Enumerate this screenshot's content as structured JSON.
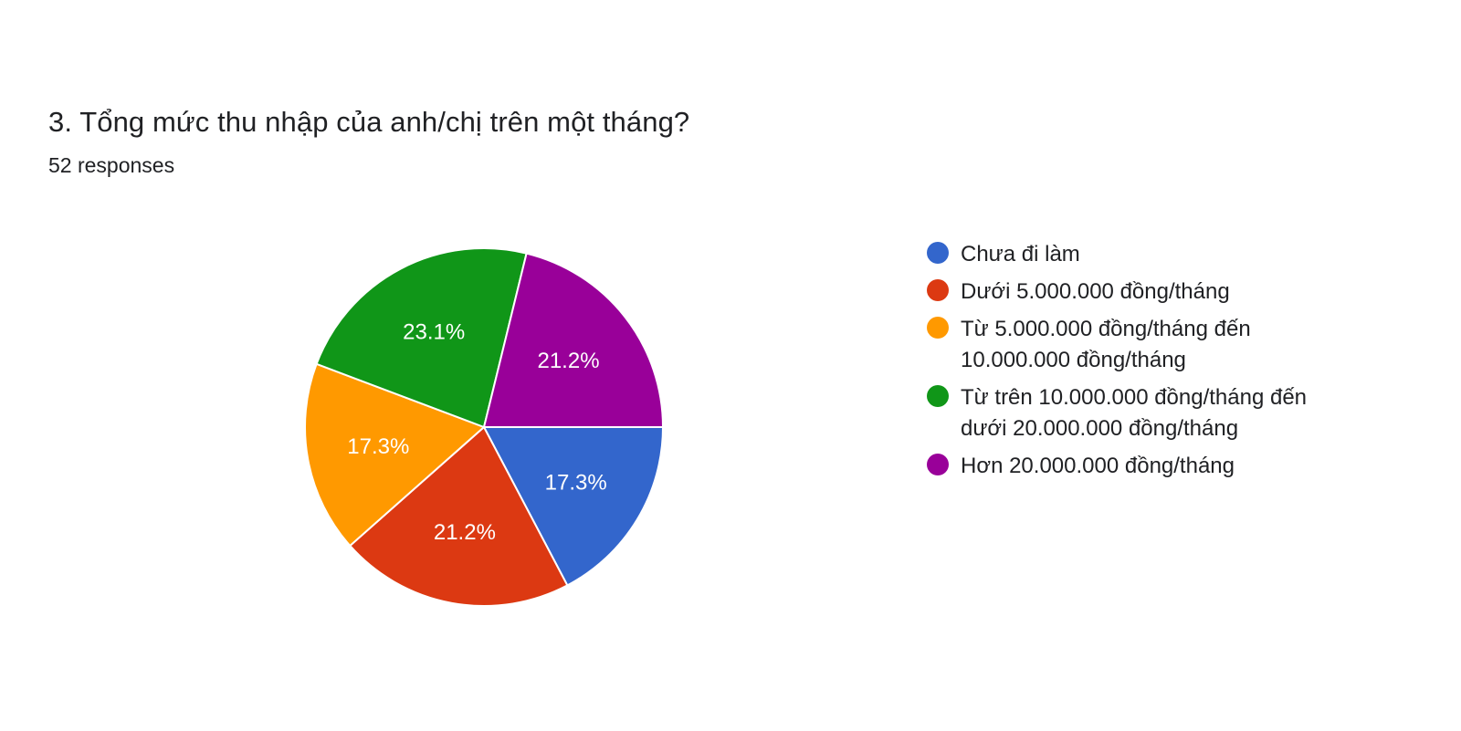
{
  "header": {
    "title": "3. Tổng mức thu nhập của anh/chị trên một tháng?",
    "responses": "52 responses"
  },
  "chart_data": {
    "type": "pie",
    "title": "3. Tổng mức thu nhập của anh/chị trên một tháng?",
    "subtitle": "52 responses",
    "slices": [
      {
        "label": "Chưa đi làm",
        "value": 17.3,
        "display": "17.3%",
        "color": "#3366cc"
      },
      {
        "label": "Dưới 5.000.000 đồng/tháng",
        "value": 21.2,
        "display": "21.2%",
        "color": "#dc3912"
      },
      {
        "label": "Từ 5.000.000 đồng/tháng đến 10.000.000 đồng/tháng",
        "value": 17.3,
        "display": "17.3%",
        "color": "#ff9900"
      },
      {
        "label": "Từ trên 10.000.000 đồng/tháng đến dưới 20.000.000 đồng/tháng",
        "value": 23.1,
        "display": "23.1%",
        "color": "#109618"
      },
      {
        "label": "Hơn 20.000.000 đồng/tháng",
        "value": 21.2,
        "display": "21.2%",
        "color": "#990099"
      }
    ],
    "legend_position": "right"
  }
}
